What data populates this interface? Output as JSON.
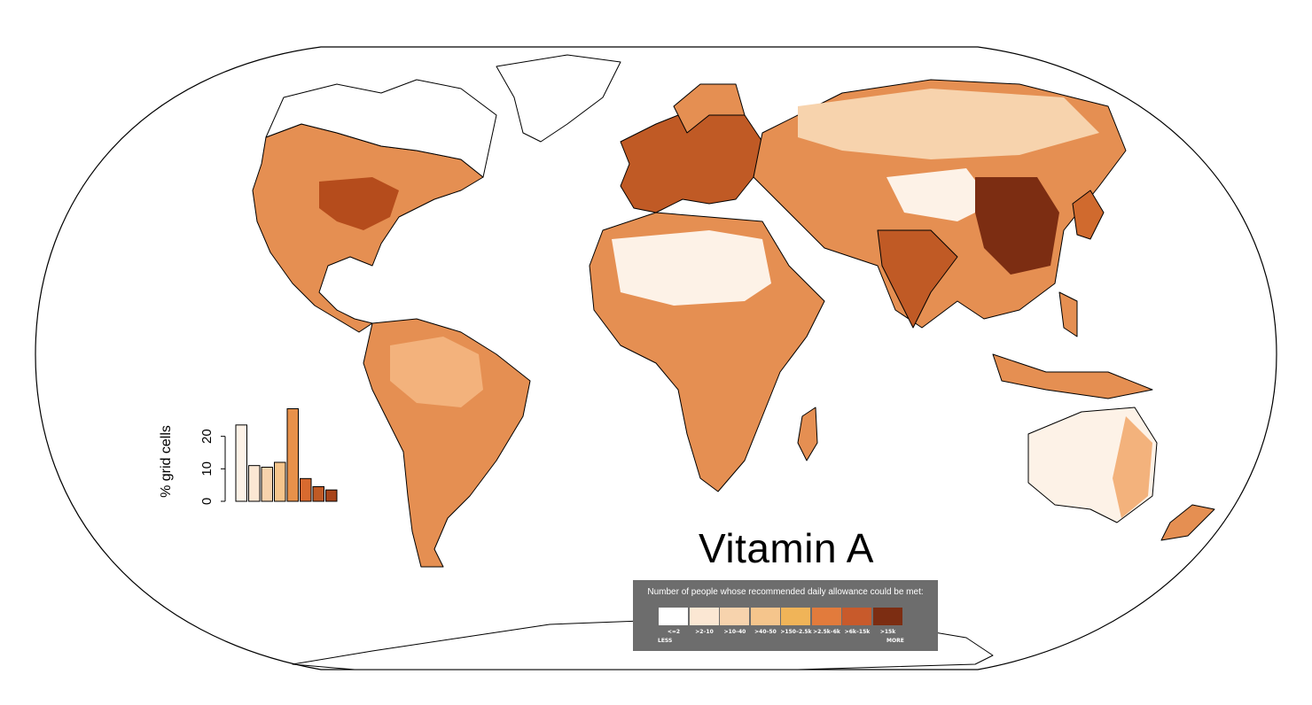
{
  "title": "Vitamin A",
  "legend": {
    "caption": "Number of people whose recommended daily allowance could be met:",
    "bins": [
      {
        "label": "<=2",
        "color": "#ffffff"
      },
      {
        "label": ">2–10",
        "color": "#fbe7d3"
      },
      {
        "label": ">10–40",
        "color": "#f7d3ad"
      },
      {
        "label": ">40–50",
        "color": "#f5c58c"
      },
      {
        "label": ">150–2.5k",
        "color": "#f0b458"
      },
      {
        "label": ">2.5k–6k",
        "color": "#e27b3c"
      },
      {
        "label": ">6k–15k",
        "color": "#c85a2b"
      },
      {
        "label": ">15k",
        "color": "#7c2d12"
      }
    ],
    "less_label": "LESS",
    "more_label": "MORE"
  },
  "histogram": {
    "ylabel": "% grid cells",
    "yticks": [
      "0",
      "10",
      "20"
    ],
    "values": [
      23.5,
      11,
      10.5,
      12,
      28.5,
      7,
      4.5,
      3.5
    ],
    "colors": [
      "#fdf2e7",
      "#fbe7d3",
      "#f7d3ad",
      "#f5c58c",
      "#e8914a",
      "#d86a2f",
      "#c05a25",
      "#a8441a"
    ]
  },
  "map": {
    "ocean_color": "#ffffff",
    "land_shades": [
      "#fdf2e7",
      "#f3b27c",
      "#e58f52",
      "#d06a2e",
      "#9c3f13"
    ]
  }
}
